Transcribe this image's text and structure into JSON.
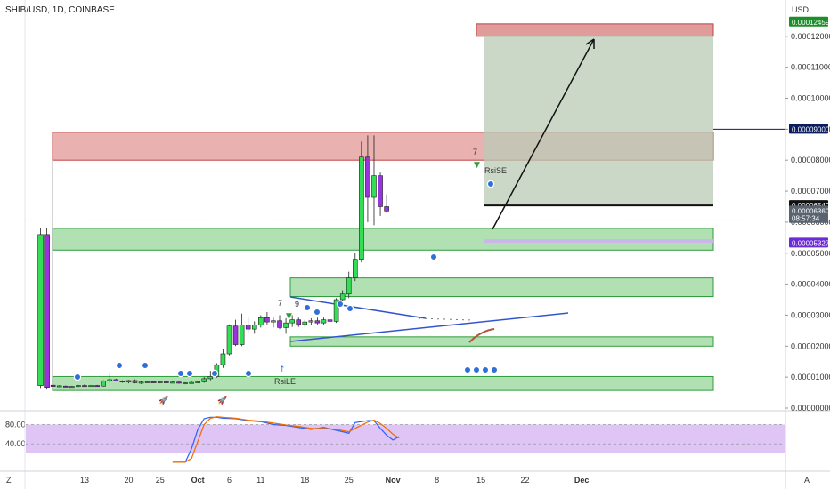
{
  "header": {
    "title": "SHIB/USD, 1D, COINBASE",
    "currency": "USD"
  },
  "chart_data": {
    "type": "candlestick",
    "symbol": "SHIB/USD",
    "interval": "1D",
    "exchange": "COINBASE",
    "x_axis_ticks": [
      {
        "day": 13,
        "label": "13"
      },
      {
        "day": 20,
        "label": "20"
      },
      {
        "day": 25,
        "label": "25"
      },
      {
        "day": 31,
        "label": "Oct"
      },
      {
        "day": 36,
        "label": "6"
      },
      {
        "day": 41,
        "label": "11"
      },
      {
        "day": 48,
        "label": "18"
      },
      {
        "day": 55,
        "label": "25"
      },
      {
        "day": 62,
        "label": "Nov"
      },
      {
        "day": 69,
        "label": "8"
      },
      {
        "day": 76,
        "label": "15"
      },
      {
        "day": 83,
        "label": "22"
      },
      {
        "day": 92,
        "label": "Dec"
      }
    ],
    "y_axis_ticks": [
      "0.00012000",
      "0.00011000",
      "0.00010000",
      "0.00009000",
      "0.00008000",
      "0.00007000",
      "0.00006000",
      "0.00005000",
      "0.00004000",
      "0.00003000",
      "0.00002000",
      "0.00001000",
      "0.00000000"
    ],
    "ylim": [
      0.0,
      0.000129
    ],
    "price_badges": [
      {
        "label": "USD",
        "value": 0.0001286,
        "color": "#ffffff",
        "text_color": "#333333"
      },
      {
        "label": "0.00012459",
        "value": 0.00012459,
        "color": "#1b8f2a",
        "text_color": "#ffffff"
      },
      {
        "label": "0.00009000",
        "value": 9e-05,
        "color": "#0b1d5b",
        "text_color": "#ffffff"
      },
      {
        "label": "0.00006540",
        "value": 6.54e-05,
        "color": "#111111",
        "text_color": "#ffffff"
      },
      {
        "label": "0.00006360",
        "value": 6.36e-05,
        "color": "#5a6470",
        "text_color": "#ffffff"
      },
      {
        "label": "08:57:34",
        "value": 6.12e-05,
        "color": "#5a6470",
        "text_color": "#ffffff"
      },
      {
        "label": "0.00005327",
        "value": 5.327e-05,
        "color": "#6b2bd6",
        "text_color": "#ffffff"
      }
    ],
    "candles": [
      {
        "d": 6,
        "o": 7.3e-06,
        "h": 5.8e-05,
        "l": 6.5e-06,
        "c": 5.6e-05,
        "col": "#33dd55"
      },
      {
        "d": 7,
        "o": 5.6e-05,
        "h": 5.8e-05,
        "l": 6e-06,
        "c": 6.7e-06,
        "col": "#9933dd"
      },
      {
        "d": 8,
        "o": 7.4e-06,
        "h": 7.8e-06,
        "l": 6.8e-06,
        "c": 7e-06,
        "col": "#9933dd"
      },
      {
        "d": 9,
        "o": 7e-06,
        "h": 7.4e-06,
        "l": 6.8e-06,
        "c": 7.2e-06,
        "col": "#33dd55"
      },
      {
        "d": 10,
        "o": 7.1e-06,
        "h": 7.3e-06,
        "l": 6.8e-06,
        "c": 6.9e-06,
        "col": "#9933dd"
      },
      {
        "d": 11,
        "o": 6.9e-06,
        "h": 7.2e-06,
        "l": 6.6e-06,
        "c": 7e-06,
        "col": "#33dd55"
      },
      {
        "d": 12,
        "o": 7e-06,
        "h": 7.5e-06,
        "l": 6.8e-06,
        "c": 7.3e-06,
        "col": "#33dd55"
      },
      {
        "d": 13,
        "o": 7.3e-06,
        "h": 7.7e-06,
        "l": 7.1e-06,
        "c": 7.2e-06,
        "col": "#9933dd"
      },
      {
        "d": 14,
        "o": 7.2e-06,
        "h": 7.4e-06,
        "l": 6.9e-06,
        "c": 7.3e-06,
        "col": "#33dd55"
      },
      {
        "d": 15,
        "o": 7.3e-06,
        "h": 7.5e-06,
        "l": 7e-06,
        "c": 7.1e-06,
        "col": "#9933dd"
      },
      {
        "d": 16,
        "o": 7.1e-06,
        "h": 9e-06,
        "l": 7e-06,
        "c": 8.8e-06,
        "col": "#33dd55"
      },
      {
        "d": 17,
        "o": 8.8e-06,
        "h": 1.1e-05,
        "l": 8.2e-06,
        "c": 9.2e-06,
        "col": "#33dd55"
      },
      {
        "d": 18,
        "o": 9.2e-06,
        "h": 9.5e-06,
        "l": 8.6e-06,
        "c": 8.8e-06,
        "col": "#9933dd"
      },
      {
        "d": 19,
        "o": 8.8e-06,
        "h": 9e-06,
        "l": 8.2e-06,
        "c": 8.4e-06,
        "col": "#9933dd"
      },
      {
        "d": 20,
        "o": 8.4e-06,
        "h": 9.1e-06,
        "l": 8e-06,
        "c": 8.9e-06,
        "col": "#33dd55"
      },
      {
        "d": 21,
        "o": 8.9e-06,
        "h": 9.3e-06,
        "l": 8e-06,
        "c": 8.2e-06,
        "col": "#9933dd"
      },
      {
        "d": 22,
        "o": 8.2e-06,
        "h": 8.6e-06,
        "l": 7.8e-06,
        "c": 8.4e-06,
        "col": "#33dd55"
      },
      {
        "d": 23,
        "o": 8.4e-06,
        "h": 8.7e-06,
        "l": 8.1e-06,
        "c": 8.5e-06,
        "col": "#33dd55"
      },
      {
        "d": 24,
        "o": 8.5e-06,
        "h": 8.9e-06,
        "l": 8.2e-06,
        "c": 8.3e-06,
        "col": "#9933dd"
      },
      {
        "d": 25,
        "o": 8.3e-06,
        "h": 8.6e-06,
        "l": 8e-06,
        "c": 8.5e-06,
        "col": "#33dd55"
      },
      {
        "d": 26,
        "o": 8.5e-06,
        "h": 8.8e-06,
        "l": 8.2e-06,
        "c": 8.3e-06,
        "col": "#9933dd"
      },
      {
        "d": 27,
        "o": 8.3e-06,
        "h": 8.7e-06,
        "l": 8e-06,
        "c": 8.4e-06,
        "col": "#33dd55"
      },
      {
        "d": 28,
        "o": 8.4e-06,
        "h": 8.6e-06,
        "l": 7.9e-06,
        "c": 8.1e-06,
        "col": "#9933dd"
      },
      {
        "d": 29,
        "o": 8.1e-06,
        "h": 8.4e-06,
        "l": 7.7e-06,
        "c": 8.2e-06,
        "col": "#33dd55"
      },
      {
        "d": 30,
        "o": 8.2e-06,
        "h": 8.6e-06,
        "l": 7.9e-06,
        "c": 8.3e-06,
        "col": "#33dd55"
      },
      {
        "d": 31,
        "o": 8.3e-06,
        "h": 8.7e-06,
        "l": 8e-06,
        "c": 8.5e-06,
        "col": "#33dd55"
      },
      {
        "d": 32,
        "o": 8.5e-06,
        "h": 1e-05,
        "l": 8.2e-06,
        "c": 9.5e-06,
        "col": "#33dd55"
      },
      {
        "d": 33,
        "o": 9.5e-06,
        "h": 1.2e-05,
        "l": 9e-06,
        "c": 1.02e-05,
        "col": "#33dd55"
      },
      {
        "d": 34,
        "o": 1.02e-05,
        "h": 1.45e-05,
        "l": 9.8e-06,
        "c": 1.4e-05,
        "col": "#33dd55"
      },
      {
        "d": 35,
        "o": 1.4e-05,
        "h": 1.9e-05,
        "l": 1.3e-05,
        "c": 1.75e-05,
        "col": "#33dd55"
      },
      {
        "d": 36,
        "o": 1.75e-05,
        "h": 2.7e-05,
        "l": 1.7e-05,
        "c": 2.65e-05,
        "col": "#33dd55"
      },
      {
        "d": 37,
        "o": 2.65e-05,
        "h": 2.85e-05,
        "l": 2e-05,
        "c": 2.05e-05,
        "col": "#9933dd"
      },
      {
        "d": 38,
        "o": 2.05e-05,
        "h": 3.05e-05,
        "l": 2e-05,
        "c": 2.68e-05,
        "col": "#33dd55"
      },
      {
        "d": 39,
        "o": 2.68e-05,
        "h": 2.95e-05,
        "l": 2.4e-05,
        "c": 2.55e-05,
        "col": "#9933dd"
      },
      {
        "d": 40,
        "o": 2.55e-05,
        "h": 2.8e-05,
        "l": 2.4e-05,
        "c": 2.68e-05,
        "col": "#33dd55"
      },
      {
        "d": 41,
        "o": 2.68e-05,
        "h": 3e-05,
        "l": 2.6e-05,
        "c": 2.92e-05,
        "col": "#33dd55"
      },
      {
        "d": 42,
        "o": 2.92e-05,
        "h": 3.1e-05,
        "l": 2.7e-05,
        "c": 2.78e-05,
        "col": "#9933dd"
      },
      {
        "d": 43,
        "o": 2.78e-05,
        "h": 2.92e-05,
        "l": 2.6e-05,
        "c": 2.82e-05,
        "col": "#33dd55"
      },
      {
        "d": 44,
        "o": 2.82e-05,
        "h": 3e-05,
        "l": 2.55e-05,
        "c": 2.6e-05,
        "col": "#9933dd"
      },
      {
        "d": 45,
        "o": 2.6e-05,
        "h": 2.9e-05,
        "l": 2.4e-05,
        "c": 2.75e-05,
        "col": "#33dd55"
      },
      {
        "d": 46,
        "o": 2.75e-05,
        "h": 3e-05,
        "l": 2.62e-05,
        "c": 2.85e-05,
        "col": "#33dd55"
      },
      {
        "d": 47,
        "o": 2.85e-05,
        "h": 2.92e-05,
        "l": 2.62e-05,
        "c": 2.7e-05,
        "col": "#9933dd"
      },
      {
        "d": 48,
        "o": 2.7e-05,
        "h": 2.85e-05,
        "l": 2.62e-05,
        "c": 2.78e-05,
        "col": "#33dd55"
      },
      {
        "d": 49,
        "o": 2.78e-05,
        "h": 2.9e-05,
        "l": 2.68e-05,
        "c": 2.82e-05,
        "col": "#33dd55"
      },
      {
        "d": 50,
        "o": 2.82e-05,
        "h": 2.92e-05,
        "l": 2.7e-05,
        "c": 2.75e-05,
        "col": "#9933dd"
      },
      {
        "d": 51,
        "o": 2.75e-05,
        "h": 2.92e-05,
        "l": 2.7e-05,
        "c": 2.85e-05,
        "col": "#33dd55"
      },
      {
        "d": 52,
        "o": 2.85e-05,
        "h": 3e-05,
        "l": 2.78e-05,
        "c": 2.8e-05,
        "col": "#9933dd"
      },
      {
        "d": 53,
        "o": 2.8e-05,
        "h": 3.55e-05,
        "l": 2.75e-05,
        "c": 3.5e-05,
        "col": "#33dd55"
      },
      {
        "d": 54,
        "o": 3.5e-05,
        "h": 3.8e-05,
        "l": 3.4e-05,
        "c": 3.68e-05,
        "col": "#33dd55"
      },
      {
        "d": 55,
        "o": 3.68e-05,
        "h": 4.4e-05,
        "l": 3.55e-05,
        "c": 4.2e-05,
        "col": "#33dd55"
      },
      {
        "d": 56,
        "o": 4.2e-05,
        "h": 5e-05,
        "l": 4.1e-05,
        "c": 4.8e-05,
        "col": "#33dd55"
      },
      {
        "d": 57,
        "o": 4.8e-05,
        "h": 8.6e-05,
        "l": 4.7e-05,
        "c": 8.1e-05,
        "col": "#33dd55"
      },
      {
        "d": 58,
        "o": 8.1e-05,
        "h": 8.8e-05,
        "l": 6e-05,
        "c": 6.8e-05,
        "col": "#9933dd"
      },
      {
        "d": 59,
        "o": 6.8e-05,
        "h": 8.8e-05,
        "l": 5.9e-05,
        "c": 7.5e-05,
        "col": "#33dd55"
      },
      {
        "d": 60,
        "o": 7.5e-05,
        "h": 7.6e-05,
        "l": 6.2e-05,
        "c": 6.5e-05,
        "col": "#9933dd"
      },
      {
        "d": 61,
        "o": 6.5e-05,
        "h": 6.9e-05,
        "l": 6.3e-05,
        "c": 6.36e-05,
        "col": "#9933dd"
      }
    ],
    "zones": [
      {
        "name": "target-zone-top",
        "d0": 60,
        "d1": 92,
        "y0": 0.00012,
        "y1": 0.000124,
        "fill": "#dd9090",
        "stroke": "#c04040"
      },
      {
        "name": "resistance-zone",
        "d0": 6,
        "d1": 92,
        "y0": 8e-05,
        "y1": 8.9e-05,
        "fill": "#e8a9a9",
        "stroke": "#c04040"
      },
      {
        "name": "profit-zone",
        "d0": 60,
        "d1": 92,
        "y0": 6.54e-05,
        "y1": 0.00012,
        "fill": "#b9cbb6",
        "stroke": "none"
      },
      {
        "name": "support-zone-high",
        "d0": 6,
        "d1": 92,
        "y0": 5.1e-05,
        "y1": 5.8e-05,
        "fill": "#a8deaa",
        "stroke": "#2e9c3a"
      },
      {
        "name": "support-zone-mid",
        "d0": 37,
        "d1": 92,
        "y0": 3.6e-05,
        "y1": 4.2e-05,
        "fill": "#a8deaa",
        "stroke": "#2e9c3a"
      },
      {
        "name": "support-zone-low",
        "d0": 37,
        "d1": 92,
        "y0": 2e-05,
        "y1": 2.3e-05,
        "fill": "#a8deaa",
        "stroke": "#2e9c3a"
      },
      {
        "name": "base-zone",
        "d0": 6,
        "d1": 92,
        "y0": 5.7e-06,
        "y1": 1.02e-05,
        "fill": "#a8deaa",
        "stroke": "#2e9c3a"
      }
    ],
    "stochastic": {
      "levels": [
        80,
        40
      ],
      "ylim": [
        0,
        100
      ],
      "k": [
        [
          27,
          2
        ],
        [
          29,
          2
        ],
        [
          30,
          30
        ],
        [
          31,
          70
        ],
        [
          32,
          92
        ],
        [
          33,
          95
        ],
        [
          34,
          95
        ],
        [
          35,
          93
        ],
        [
          37,
          92
        ],
        [
          39,
          88
        ],
        [
          41,
          86
        ],
        [
          43,
          80
        ],
        [
          45,
          78
        ],
        [
          47,
          74
        ],
        [
          49,
          70
        ],
        [
          51,
          74
        ],
        [
          53,
          68
        ],
        [
          55,
          62
        ],
        [
          56,
          84
        ],
        [
          58,
          88
        ],
        [
          59,
          88
        ],
        [
          60,
          72
        ],
        [
          61,
          58
        ],
        [
          62,
          48
        ],
        [
          63,
          55
        ]
      ],
      "d": [
        [
          27,
          2
        ],
        [
          29,
          2
        ],
        [
          30,
          10
        ],
        [
          31,
          45
        ],
        [
          32,
          80
        ],
        [
          33,
          93
        ],
        [
          34,
          96
        ],
        [
          35,
          95
        ],
        [
          37,
          93
        ],
        [
          39,
          89
        ],
        [
          41,
          87
        ],
        [
          43,
          83
        ],
        [
          45,
          79
        ],
        [
          47,
          76
        ],
        [
          49,
          72
        ],
        [
          51,
          72
        ],
        [
          53,
          70
        ],
        [
          55,
          65
        ],
        [
          56,
          72
        ],
        [
          58,
          85
        ],
        [
          59,
          89
        ],
        [
          60,
          82
        ],
        [
          61,
          72
        ],
        [
          62,
          60
        ],
        [
          63,
          52
        ]
      ]
    },
    "annotations": {
      "rsi_le": "RsiLE",
      "rsi_se": "RsiSE",
      "day_count_7": "7",
      "day_count_9": "9",
      "day_count_mid": "7"
    },
    "axis_corner_labels": {
      "left": "Z",
      "right": "A"
    },
    "stoch_axis_ticks": [
      "80.00",
      "40.00"
    ],
    "colors": {
      "bull": "#33dd55",
      "bear": "#9933dd",
      "trend": "#3355cc",
      "arrow": "#111111"
    }
  }
}
